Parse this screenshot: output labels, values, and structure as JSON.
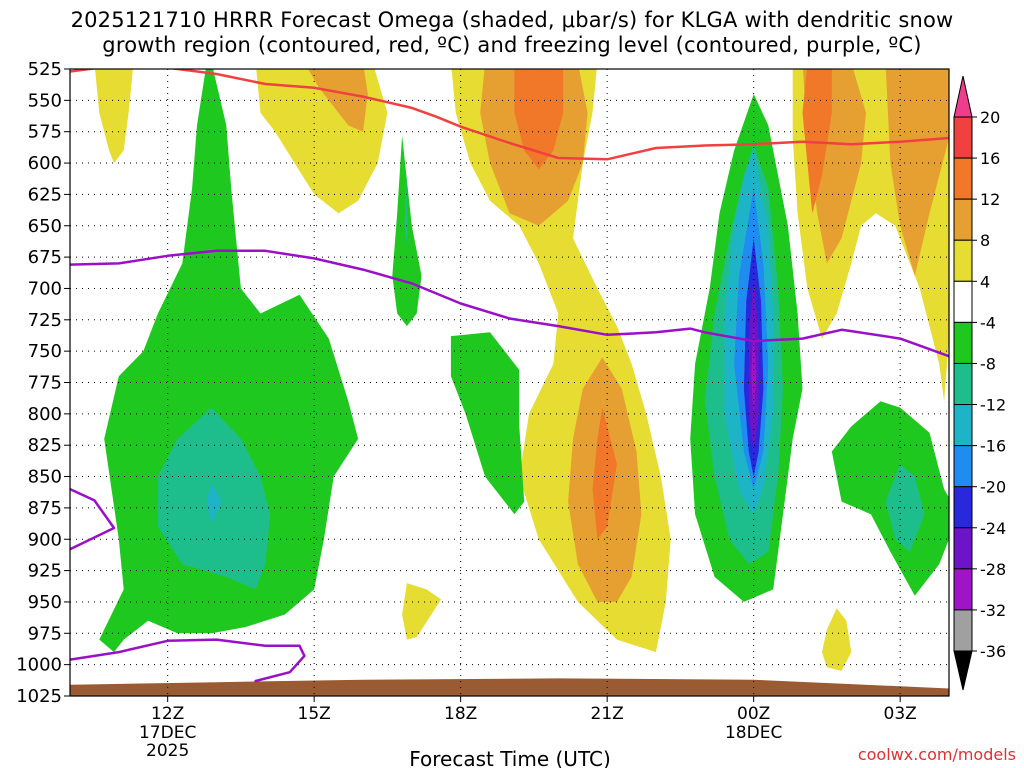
{
  "chart_data": {
    "type": "contour",
    "title_line1": "2025121710 HRRR Forecast Omega (shaded, μbar/s) for KLGA with dendritic snow",
    "title_line2": "growth region (contoured, red, ºC) and freezing level (contoured, purple, ºC)",
    "xlabel": "Forecast Time (UTC)",
    "ylabel": "",
    "credit": "coolwx.com/models",
    "y_axis": {
      "type": "pressure",
      "range": [
        1025,
        525
      ],
      "ticks": [
        "525",
        "550",
        "575",
        "600",
        "625",
        "650",
        "675",
        "700",
        "725",
        "750",
        "775",
        "800",
        "825",
        "850",
        "875",
        "900",
        "925",
        "950",
        "975",
        "1000",
        "1025"
      ]
    },
    "x_axis": {
      "range_hours": [
        10,
        28
      ],
      "ticks": [
        {
          "hour": 12,
          "label": "12Z",
          "sub1": "17DEC",
          "sub2": "2025"
        },
        {
          "hour": 15,
          "label": "15Z",
          "sub1": "",
          "sub2": ""
        },
        {
          "hour": 18,
          "label": "18Z",
          "sub1": "",
          "sub2": ""
        },
        {
          "hour": 21,
          "label": "21Z",
          "sub1": "",
          "sub2": ""
        },
        {
          "hour": 24,
          "label": "00Z",
          "sub1": "18DEC",
          "sub2": ""
        },
        {
          "hour": 27,
          "label": "03Z",
          "sub1": "",
          "sub2": ""
        }
      ]
    },
    "colorbar": {
      "levels": [
        "20",
        "16",
        "12",
        "8",
        "4",
        "-4",
        "-8",
        "-12",
        "-16",
        "-20",
        "-24",
        "-28",
        "-32",
        "-36"
      ],
      "colors": [
        "#f03c8c",
        "#f04040",
        "#f07828",
        "#e6a032",
        "#e6dc32",
        "#ffffff",
        "#1ec81e",
        "#1ebe8c",
        "#1eb4c8",
        "#1e8cf0",
        "#2828dc",
        "#6e14c8",
        "#a014c8",
        "#a0a0a0",
        "#000000"
      ]
    },
    "omega_regions": [
      {
        "name": "low-level-rise-12z",
        "min_value": -16,
        "center_hour": 12.9,
        "center_hpa": 870
      },
      {
        "name": "column-17z",
        "min_value": -12,
        "center_hour": 16.9,
        "center_hpa": 650
      },
      {
        "name": "descent-21z",
        "max_value": 16,
        "center_hour": 20.9,
        "center_hpa": 840
      },
      {
        "name": "descent-19z-aloft",
        "max_value": 16,
        "center_hour": 19.9,
        "center_hpa": 570
      },
      {
        "name": "strong-rise-00z",
        "min_value": -32,
        "center_hour": 24.0,
        "center_hpa": 750
      },
      {
        "name": "descent-01z-aloft",
        "max_value": 16,
        "center_hour": 25.0,
        "center_hpa": 560
      },
      {
        "name": "rise-03z",
        "min_value": -16,
        "center_hour": 27.1,
        "center_hpa": 880
      }
    ],
    "series": [
      {
        "name": "dendritic snow growth region",
        "color": "#f04040",
        "points": [
          [
            10,
            527
          ],
          [
            11,
            522
          ],
          [
            12,
            524
          ],
          [
            13,
            529
          ],
          [
            14,
            537
          ],
          [
            15,
            540
          ],
          [
            16,
            547
          ],
          [
            17,
            556
          ],
          [
            17.5,
            563
          ],
          [
            18,
            571
          ],
          [
            19,
            584
          ],
          [
            20,
            596
          ],
          [
            21,
            597
          ],
          [
            22,
            588
          ],
          [
            23,
            586
          ],
          [
            24,
            585
          ],
          [
            25,
            583
          ],
          [
            26,
            585
          ],
          [
            27,
            583
          ],
          [
            28,
            580
          ]
        ]
      },
      {
        "name": "freezing level aloft",
        "color": "#9a10c8",
        "points": [
          [
            10,
            681
          ],
          [
            11,
            680
          ],
          [
            12,
            674
          ],
          [
            13,
            670
          ],
          [
            14,
            670
          ],
          [
            15,
            676
          ],
          [
            16,
            685
          ],
          [
            17,
            696
          ],
          [
            18,
            712
          ],
          [
            19,
            724
          ],
          [
            20,
            730
          ],
          [
            21,
            737
          ],
          [
            22,
            735
          ],
          [
            22.7,
            732
          ],
          [
            23,
            735
          ],
          [
            24,
            742
          ],
          [
            25,
            740
          ],
          [
            25.8,
            733
          ],
          [
            26,
            734
          ],
          [
            27,
            740
          ],
          [
            28,
            754
          ]
        ]
      },
      {
        "name": "freezing level low",
        "color": "#9a10c8",
        "points": [
          [
            10,
            996
          ],
          [
            11,
            990
          ],
          [
            12,
            981
          ],
          [
            13,
            980
          ],
          [
            14,
            985
          ],
          [
            14.7,
            985
          ],
          [
            14.8,
            993
          ],
          [
            14.5,
            1006
          ],
          [
            13.8,
            1013
          ]
        ]
      },
      {
        "name": "freezing level left edge",
        "color": "#9a10c8",
        "points": [
          [
            10,
            860
          ],
          [
            10.5,
            869
          ],
          [
            10.9,
            891
          ],
          [
            10,
            908
          ]
        ]
      }
    ],
    "terrain_hpa": 1016
  }
}
